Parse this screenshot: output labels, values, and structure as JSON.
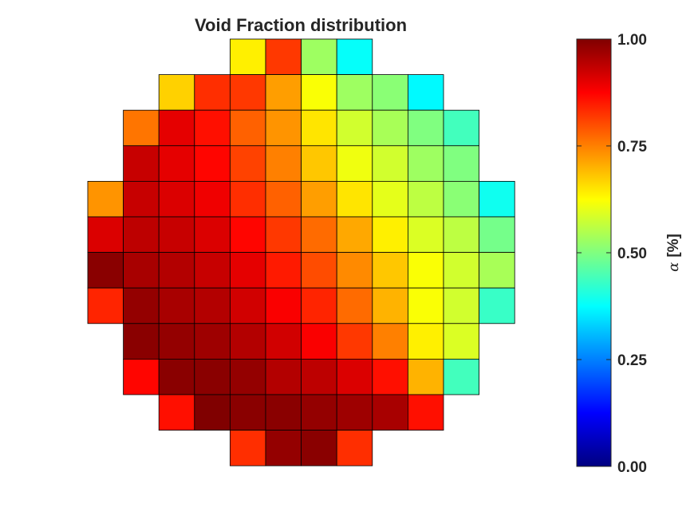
{
  "chart_data": {
    "type": "heatmap",
    "title": "Void Fraction distribution",
    "colorbar": {
      "label_symbol": "α",
      "label_unit": "[%]",
      "range": [
        0,
        1
      ],
      "ticks": [
        0.0,
        0.25,
        0.5,
        0.75,
        1.0
      ],
      "tick_labels": [
        "0.00",
        "0.25",
        "0.50",
        "0.75",
        "1.00"
      ],
      "colormap": "jet"
    },
    "grid": {
      "rows": 12,
      "cols": 12,
      "cells": [
        [
          null,
          null,
          null,
          null,
          0.64,
          0.82,
          0.53,
          0.38,
          null,
          null,
          null,
          null
        ],
        [
          null,
          null,
          0.67,
          0.83,
          0.82,
          0.72,
          0.62,
          0.53,
          0.51,
          0.37,
          null,
          null
        ],
        [
          null,
          0.76,
          0.9,
          0.86,
          0.78,
          0.73,
          0.65,
          0.58,
          0.54,
          0.5,
          0.44,
          null
        ],
        [
          null,
          0.93,
          0.9,
          0.87,
          0.81,
          0.75,
          0.68,
          0.61,
          0.58,
          0.53,
          0.5,
          null
        ],
        [
          0.73,
          0.93,
          0.91,
          0.89,
          0.83,
          0.78,
          0.72,
          0.65,
          0.6,
          0.56,
          0.51,
          0.39
        ],
        [
          0.91,
          0.94,
          0.93,
          0.91,
          0.87,
          0.82,
          0.77,
          0.71,
          0.64,
          0.59,
          0.56,
          0.49
        ],
        [
          0.99,
          0.96,
          0.95,
          0.93,
          0.9,
          0.85,
          0.8,
          0.74,
          0.68,
          0.62,
          0.58,
          0.54
        ],
        [
          0.84,
          0.98,
          0.96,
          0.95,
          0.92,
          0.88,
          0.84,
          0.77,
          0.7,
          0.62,
          0.58,
          0.43
        ],
        [
          null,
          0.99,
          0.98,
          0.97,
          0.95,
          0.92,
          0.88,
          0.82,
          0.75,
          0.64,
          0.59,
          null
        ],
        [
          null,
          0.87,
          0.99,
          0.99,
          0.98,
          0.95,
          0.94,
          0.91,
          0.86,
          0.7,
          0.44,
          null
        ],
        [
          null,
          null,
          0.86,
          1.0,
          0.99,
          0.99,
          0.98,
          0.97,
          0.96,
          0.86,
          null,
          null
        ],
        [
          null,
          null,
          null,
          null,
          0.83,
          0.98,
          0.99,
          0.83,
          null,
          null,
          null,
          null
        ]
      ]
    }
  }
}
